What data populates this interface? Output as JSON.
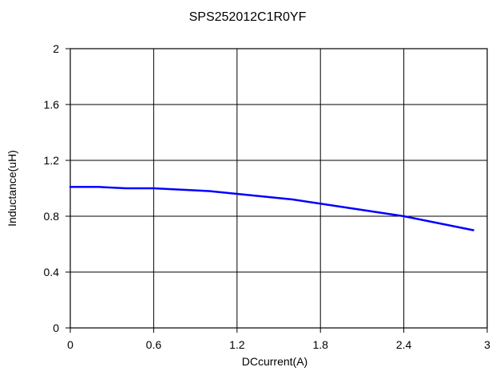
{
  "chart_data": {
    "type": "line",
    "title": "SPS252012C1R0YF",
    "xlabel": "DCcurrent(A)",
    "ylabel": "Inductance(uH)",
    "xlim": [
      0,
      3
    ],
    "ylim": [
      0,
      2
    ],
    "xticks": [
      0,
      0.6,
      1.2,
      1.8,
      2.4,
      3
    ],
    "yticks": [
      0,
      0.4,
      0.8,
      1.2,
      1.6,
      2
    ],
    "xtick_labels": [
      "0",
      "0.6",
      "1.2",
      "1.8",
      "2.4",
      "3"
    ],
    "ytick_labels": [
      "0",
      "0.4",
      "0.8",
      "1.2",
      "1.6",
      "2"
    ],
    "grid": true,
    "legend": "none",
    "series": [
      {
        "color": "#0000ff",
        "x": [
          0,
          0.2,
          0.4,
          0.6,
          0.8,
          1.0,
          1.2,
          1.4,
          1.6,
          1.8,
          2.0,
          2.2,
          2.4,
          2.6,
          2.8,
          2.9
        ],
        "y": [
          1.01,
          1.01,
          1.0,
          1.0,
          0.99,
          0.98,
          0.96,
          0.94,
          0.92,
          0.89,
          0.86,
          0.83,
          0.8,
          0.76,
          0.72,
          0.7
        ]
      }
    ]
  }
}
